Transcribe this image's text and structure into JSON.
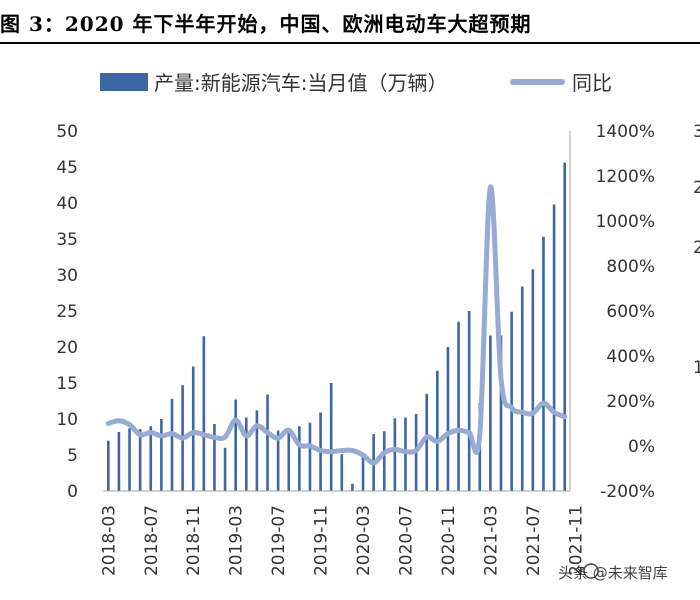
{
  "chart_data": {
    "type": "bar",
    "title": "图 3：2020 年下半年开始，中国、欧洲电动车大超预期",
    "series": [
      {
        "name": "产量:新能源汽车:当月值（万辆）",
        "type": "bar",
        "axis": "left",
        "color": "#3d66a3",
        "values": [
          7.0,
          8.2,
          8.7,
          8.6,
          9.0,
          10.0,
          12.8,
          14.7,
          17.3,
          21.5,
          9.3,
          6.0,
          12.7,
          10.2,
          11.2,
          13.4,
          8.4,
          8.7,
          9.0,
          9.5,
          10.9,
          15.0,
          5.1,
          1.0,
          5.0,
          7.9,
          8.3,
          10.1,
          10.2,
          10.7,
          13.5,
          16.7,
          20.0,
          23.5,
          25.0,
          12.2,
          21.6,
          21.6,
          24.9,
          28.4,
          30.8,
          35.3,
          39.8,
          45.6
        ]
      },
      {
        "name": "同比",
        "type": "line",
        "axis": "right",
        "color": "#98abd4",
        "values": [
          100,
          112,
          95,
          50,
          60,
          45,
          55,
          35,
          60,
          50,
          38,
          40,
          115,
          45,
          90,
          60,
          35,
          70,
          5,
          0,
          -20,
          -25,
          -20,
          -20,
          -40,
          -75,
          -30,
          -15,
          -25,
          -20,
          40,
          20,
          55,
          70,
          60,
          50,
          1150,
          300,
          170,
          150,
          145,
          190,
          150,
          130
        ]
      }
    ],
    "x_labels": [
      "2018-03",
      "2018-07",
      "2018-11",
      "2019-03",
      "2019-07",
      "2019-11",
      "2020-03",
      "2020-07",
      "2020-11",
      "2021-03",
      "2021-07",
      "2021-11"
    ],
    "y_left": {
      "ticks": [
        "0",
        "5",
        "10",
        "15",
        "20",
        "25",
        "30",
        "35",
        "40",
        "45",
        "50"
      ],
      "ylim": [
        0,
        50
      ]
    },
    "y_right": {
      "ticks": [
        "-200%",
        "0%",
        "200%",
        "400%",
        "600%",
        "800%",
        "1000%",
        "1200%",
        "1400%"
      ],
      "ylim": [
        -200,
        1400
      ]
    },
    "y_right_cut": {
      "ticks": [
        "3",
        "2",
        "2",
        "1"
      ]
    }
  },
  "legend": {
    "bar_label": "产量:新能源汽车:当月值（万辆）",
    "line_label": "同比"
  },
  "watermark": {
    "text": "头条 @未来智库"
  },
  "colors": {
    "bar": "#3d66a3",
    "line": "#98abd4",
    "axis": "#a6a6a6"
  }
}
